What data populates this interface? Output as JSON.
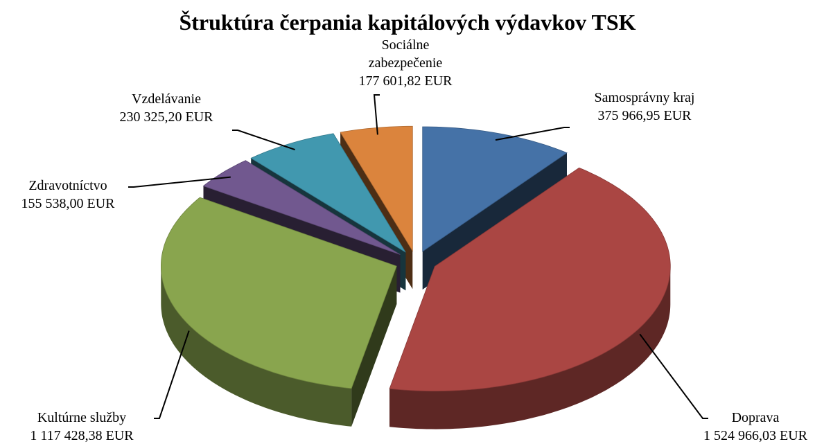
{
  "chart_data": {
    "type": "pie",
    "title": "Štruktúra čerpania kapitálových výdavkov TSK",
    "categories": [
      "Samosprávny kraj",
      "Doprava",
      "Kultúrne služby",
      "Zdravotníctvo",
      "Vzdelávanie",
      "Sociálne zabezpečenie"
    ],
    "values": [
      375966.95,
      1524966.03,
      1117428.38,
      155538.0,
      230325.2,
      177601.82
    ],
    "value_labels": [
      "375 966,95 EUR",
      "1 524 966,03 EUR",
      "1 117 428,38 EUR",
      "155 538,00 EUR",
      "230 325,20 EUR",
      "177 601,82 EUR"
    ],
    "colors": [
      "#4572a7",
      "#aa4643",
      "#89a54e",
      "#71588f",
      "#4198af",
      "#db843d"
    ]
  }
}
